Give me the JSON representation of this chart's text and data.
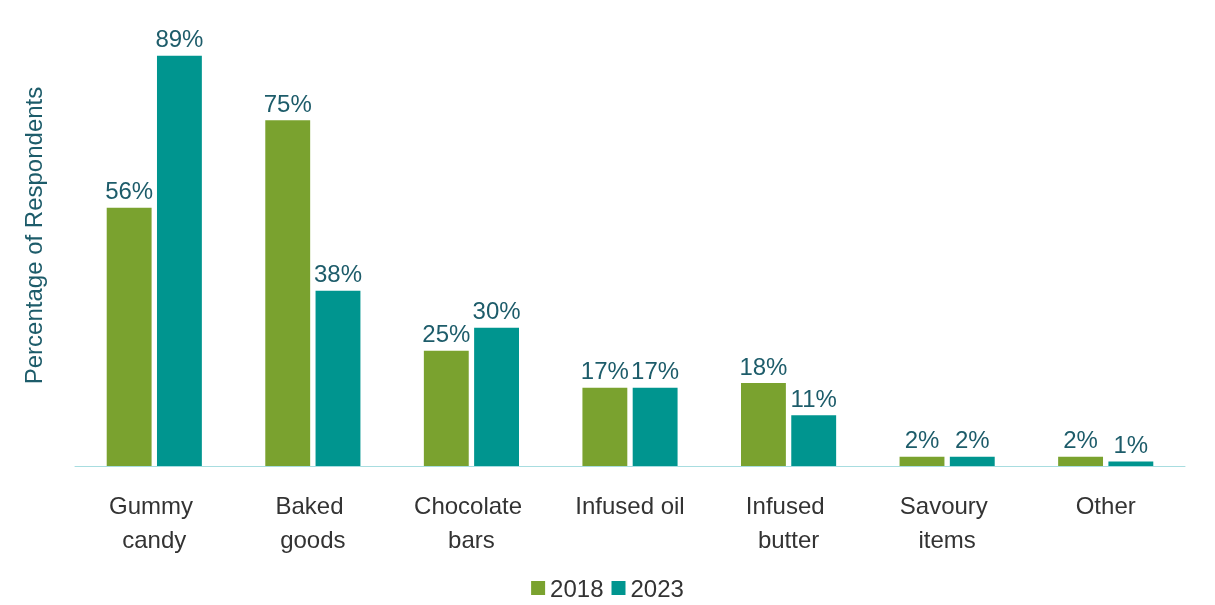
{
  "chart_data": {
    "type": "bar",
    "ylabel": "Percentage of Respondents",
    "categories": [
      "Gummy candy",
      "Baked goods",
      "Chocolate bars",
      "Infused oil",
      "Infused butter",
      "Savoury items",
      "Other"
    ],
    "series": [
      {
        "name": "2018",
        "color": "#7aa22f",
        "values": [
          56,
          75,
          25,
          17,
          18,
          2,
          2
        ],
        "value_labels": [
          "56%",
          "75%",
          "25%",
          "17%",
          "18%",
          "2%",
          "2%"
        ]
      },
      {
        "name": "2023",
        "color": "#00958f",
        "values": [
          89,
          38,
          30,
          17,
          11,
          2,
          1
        ],
        "value_labels": [
          "89%",
          "38%",
          "30%",
          "17%",
          "11%",
          "2%",
          "1%"
        ]
      }
    ],
    "legend": "bottom",
    "grid": false
  }
}
